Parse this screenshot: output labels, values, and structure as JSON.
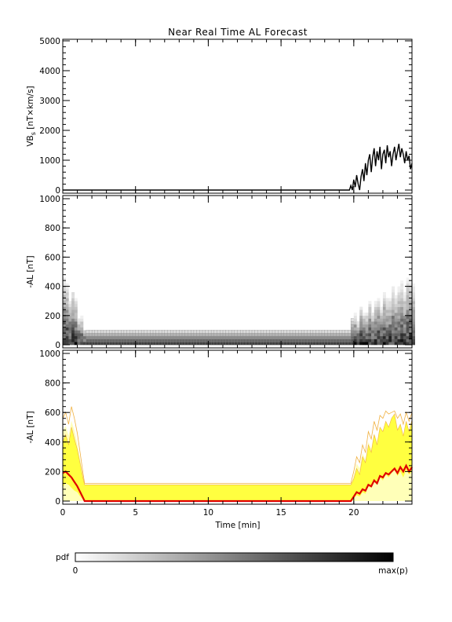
{
  "title": "Near Real Time AL Forecast",
  "chart_data": [
    {
      "type": "line",
      "panel": "solar-wind-driver",
      "title": "Near Real Time AL Forecast",
      "ylabel": "VB",
      "ylabel_sub": "s",
      "ylabel_units": " [nT×km/s]",
      "xlim": [
        0,
        24
      ],
      "ylim": [
        0,
        5000
      ],
      "yticks": [
        0,
        1000,
        2000,
        3000,
        4000,
        5000
      ],
      "grid": false,
      "series": [
        {
          "x": [
            0,
            19.7,
            19.8,
            19.9,
            20.0,
            20.1,
            20.2,
            20.3,
            20.4,
            20.5,
            20.6,
            20.7,
            20.8,
            20.9,
            21.0,
            21.1,
            21.2,
            21.3,
            21.4,
            21.5,
            21.6,
            21.7,
            21.8,
            21.9,
            22.0,
            22.1,
            22.2,
            22.3,
            22.4,
            22.5,
            22.6,
            22.7,
            22.8,
            22.9,
            23.0,
            23.1,
            23.2,
            23.3,
            23.4,
            23.5,
            23.6,
            23.7,
            23.8,
            23.9,
            24.0
          ],
          "y": [
            0,
            0,
            150,
            0,
            350,
            100,
            500,
            200,
            0,
            450,
            700,
            300,
            900,
            500,
            1000,
            1200,
            600,
            1100,
            1400,
            800,
            1300,
            1000,
            1450,
            700,
            1200,
            1350,
            900,
            1500,
            1100,
            1300,
            800,
            1200,
            1450,
            1000,
            1300,
            1550,
            1100,
            1400,
            1200,
            900,
            1300,
            1000,
            1150,
            700,
            900
          ]
        }
      ]
    },
    {
      "type": "heatmap",
      "panel": "al-probability",
      "ylabel": "-AL [nT]",
      "xlim": [
        0,
        24
      ],
      "ylim": [
        0,
        1000
      ],
      "yticks": [
        0,
        200,
        400,
        600,
        800,
        1000
      ],
      "colorscale": "grayscale (white = 0, black = max(p))",
      "grid": false
    },
    {
      "type": "area",
      "panel": "al-forecast",
      "ylabel": "-AL [nT]",
      "xlabel": "Time [min]",
      "xlim": [
        0,
        24
      ],
      "ylim": [
        0,
        1000
      ],
      "xticks": [
        0,
        5,
        10,
        15,
        20
      ],
      "yticks": [
        0,
        200,
        400,
        600,
        800,
        1000
      ],
      "grid": false,
      "band_color": "#ffff40",
      "outline_color": "#f0b040",
      "median_color": "#e00000",
      "x": [
        0,
        0.2,
        0.4,
        0.6,
        0.8,
        1.0,
        1.2,
        1.4,
        1.5,
        19.5,
        19.8,
        20.0,
        20.2,
        20.4,
        20.6,
        20.8,
        21.0,
        21.2,
        21.4,
        21.6,
        21.8,
        22.0,
        22.2,
        22.4,
        22.6,
        22.8,
        23.0,
        23.2,
        23.4,
        23.6,
        23.8,
        24.0
      ],
      "upper": [
        400,
        450,
        380,
        500,
        420,
        350,
        250,
        150,
        110,
        110,
        110,
        150,
        220,
        180,
        300,
        260,
        380,
        330,
        450,
        380,
        500,
        470,
        540,
        500,
        560,
        590,
        480,
        520,
        440,
        540,
        470,
        550
      ],
      "lower": [
        100,
        120,
        110,
        90,
        70,
        60,
        30,
        10,
        0,
        0,
        0,
        20,
        40,
        30,
        60,
        50,
        100,
        90,
        130,
        110,
        160,
        140,
        180,
        160,
        190,
        210,
        170,
        200,
        160,
        210,
        180,
        200
      ],
      "median": [
        190,
        200,
        180,
        160,
        130,
        100,
        60,
        20,
        0,
        0,
        0,
        30,
        60,
        50,
        80,
        70,
        110,
        100,
        140,
        120,
        170,
        160,
        190,
        180,
        200,
        220,
        190,
        230,
        200,
        240,
        200,
        230
      ],
      "max_envelope": [
        560,
        600,
        520,
        640,
        560,
        460,
        320,
        180,
        120,
        120,
        120,
        200,
        300,
        260,
        380,
        330,
        470,
        420,
        540,
        480,
        580,
        560,
        610,
        590,
        600,
        610,
        560,
        590,
        520,
        600,
        540,
        600
      ]
    }
  ],
  "colorbar": {
    "label": "pdf",
    "min_label": "0",
    "max_label": "max(p)"
  }
}
